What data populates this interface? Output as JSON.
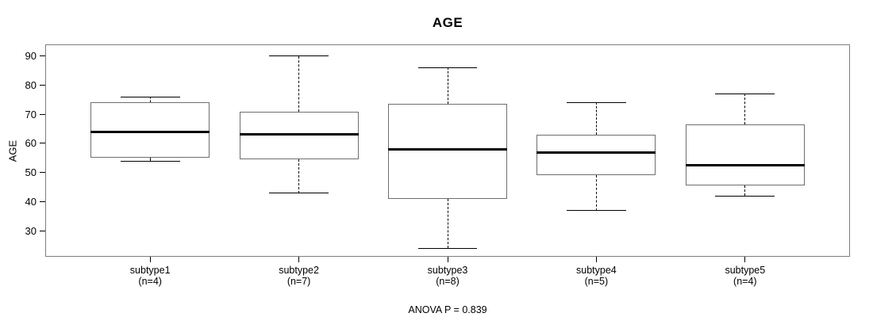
{
  "chart_data": {
    "type": "boxplot",
    "title": "AGE",
    "ylabel": "AGE",
    "xlabel": "",
    "annotation": "ANOVA P = 0.839",
    "grid": false,
    "legend": "none",
    "y_ticks": [
      30,
      40,
      50,
      60,
      70,
      80,
      90
    ],
    "ylim": [
      21.4,
      93.7
    ],
    "groups": [
      {
        "label": "subtype1",
        "sublabel": "(n=4)",
        "n": 4,
        "whisker_low": 54,
        "q1": 55,
        "median": 64,
        "q3": 74,
        "whisker_high": 76
      },
      {
        "label": "subtype2",
        "sublabel": "(n=7)",
        "n": 7,
        "whisker_low": 43,
        "q1": 54.5,
        "median": 63,
        "q3": 71,
        "whisker_high": 90
      },
      {
        "label": "subtype3",
        "sublabel": "(n=8)",
        "n": 8,
        "whisker_low": 24,
        "q1": 41,
        "median": 58,
        "q3": 73.5,
        "whisker_high": 86
      },
      {
        "label": "subtype4",
        "sublabel": "(n=5)",
        "n": 5,
        "whisker_low": 37,
        "q1": 49,
        "median": 57,
        "q3": 63,
        "whisker_high": 74
      },
      {
        "label": "subtype5",
        "sublabel": "(n=4)",
        "n": 4,
        "whisker_low": 42,
        "q1": 45.5,
        "median": 52.5,
        "q3": 66.5,
        "whisker_high": 77
      }
    ],
    "colors": {
      "line": "#000000",
      "box_border": "#6e6e6e",
      "plot_border": "#7d7d7d",
      "background": "#ffffff"
    }
  }
}
